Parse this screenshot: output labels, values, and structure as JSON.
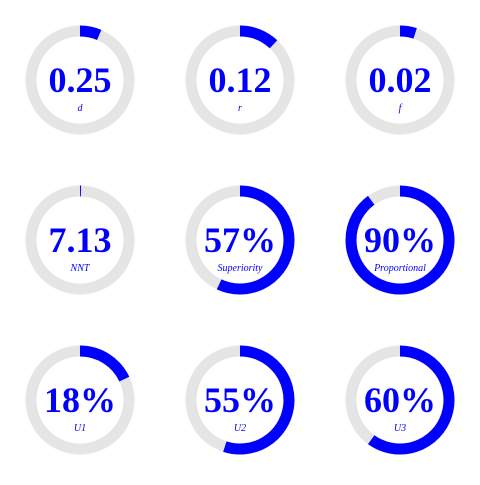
{
  "chart_data": {
    "type": "donut-gauges",
    "colors": {
      "accent": "#0000ff",
      "track": "#e5e5e5",
      "text": "#0000ff",
      "background": "#ffffff"
    },
    "gauges": [
      {
        "value_text": "0.25",
        "label": "d",
        "fraction": 0.064
      },
      {
        "value_text": "0.12",
        "label": "r",
        "fraction": 0.12
      },
      {
        "value_text": "0.02",
        "label": "f",
        "fraction": 0.05
      },
      {
        "value_text": "7.13",
        "label": "NNT",
        "fraction": 0.003
      },
      {
        "value_text": "57%",
        "label": "Superiority",
        "fraction": 0.57
      },
      {
        "value_text": "90%",
        "label": "Proportional",
        "fraction": 0.9
      },
      {
        "value_text": "18%",
        "label": "U1",
        "fraction": 0.18
      },
      {
        "value_text": "55%",
        "label": "U2",
        "fraction": 0.55
      },
      {
        "value_text": "60%",
        "label": "U3",
        "fraction": 0.6
      }
    ]
  }
}
